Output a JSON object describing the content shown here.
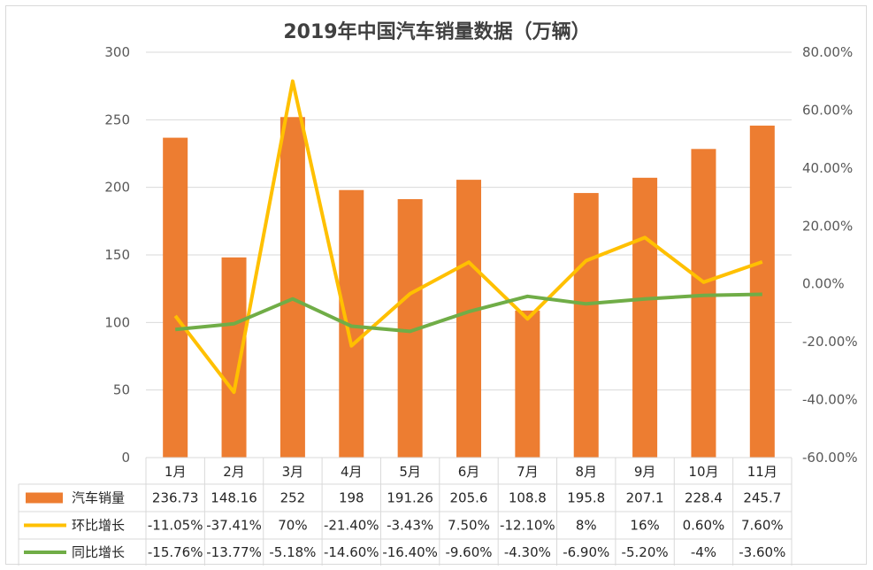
{
  "colors": {
    "bar": "#ED7D31",
    "mom_line": "#FFC000",
    "yoy_line": "#70AD47",
    "grid": "#d9d9d9",
    "text": "#595959"
  },
  "chart_data": {
    "type": "bar",
    "title": "2019年中国汽车销量数据（万辆）",
    "categories": [
      "1月",
      "2月",
      "3月",
      "4月",
      "5月",
      "6月",
      "7月",
      "8月",
      "9月",
      "10月",
      "11月"
    ],
    "y_left": {
      "ticks": [
        "0",
        "50",
        "100",
        "150",
        "200",
        "250",
        "300"
      ],
      "ylim": [
        0,
        300
      ]
    },
    "y_right": {
      "ticks": [
        "-60.00%",
        "-40.00%",
        "-20.00%",
        "0.00%",
        "20.00%",
        "40.00%",
        "60.00%",
        "80.00%"
      ],
      "ylim": [
        -0.6,
        0.8
      ]
    },
    "grid": true,
    "legend_placement": "data-table",
    "series": [
      {
        "name": "汽车销量",
        "type": "bar",
        "axis": "left",
        "values": [
          236.73,
          148.16,
          252,
          198,
          191.26,
          205.6,
          108.8,
          195.8,
          207.1,
          228.4,
          245.7
        ],
        "labels": [
          "236.73",
          "148.16",
          "252",
          "198",
          "191.26",
          "205.6",
          "108.8",
          "195.8",
          "207.1",
          "228.4",
          "245.7"
        ]
      },
      {
        "name": "环比增长",
        "type": "line",
        "axis": "right",
        "values": [
          -0.1105,
          -0.3741,
          0.7,
          -0.214,
          -0.0343,
          0.075,
          -0.121,
          0.08,
          0.16,
          0.006,
          0.076
        ],
        "labels": [
          "-11.05%",
          "-37.41%",
          "70%",
          "-21.40%",
          "-3.43%",
          "7.50%",
          "-12.10%",
          "8%",
          "16%",
          "0.60%",
          "7.60%"
        ]
      },
      {
        "name": "同比增长",
        "type": "line",
        "axis": "right",
        "values": [
          -0.1576,
          -0.1377,
          -0.0518,
          -0.146,
          -0.164,
          -0.096,
          -0.043,
          -0.069,
          -0.052,
          -0.04,
          -0.036
        ],
        "labels": [
          "-15.76%",
          "-13.77%",
          "-5.18%",
          "-14.60%",
          "-16.40%",
          "-9.60%",
          "-4.30%",
          "-6.90%",
          "-5.20%",
          "-4%",
          "-3.60%"
        ]
      }
    ]
  }
}
